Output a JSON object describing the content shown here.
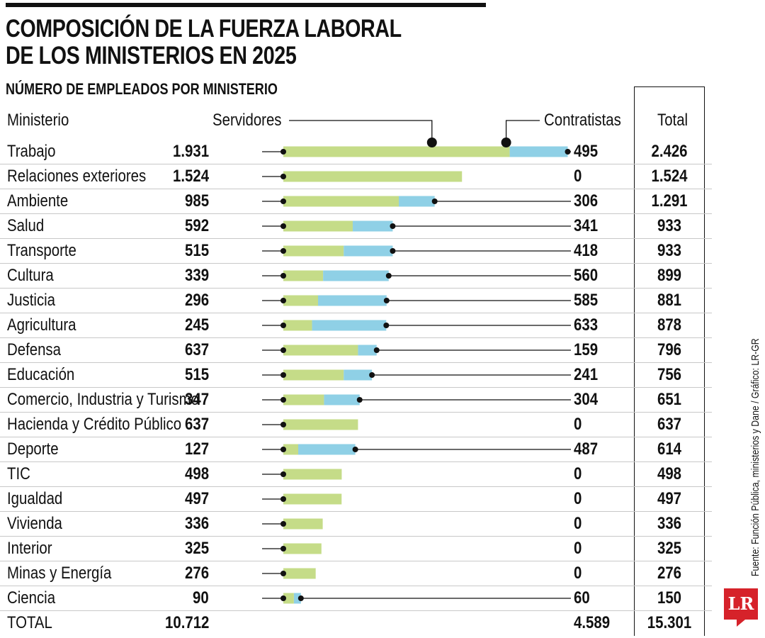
{
  "title": "COMPOSICIÓN DE LA FUERZA LABORAL DE LOS MINISTERIOS EN 2025",
  "title_line1": "COMPOSICIÓN DE LA FUERZA LABORAL",
  "title_line2": "DE LOS MINISTERIOS EN 2025",
  "subtitle": "NÚMERO DE EMPLEADOS POR MINISTERIO",
  "source": "Fuente: Función Pública, ministerios y Dane / Gráfico: LR-GR",
  "logo": "LR",
  "colors": {
    "servidores": "#c5dc88",
    "contratistas": "#8fd0e6",
    "line": "#111111"
  },
  "chart_data": {
    "type": "bar",
    "orientation": "horizontal",
    "stacked": true,
    "columns": {
      "name": "Ministerio",
      "servidores": "Servidores",
      "contratistas": "Contratistas",
      "total": "Total"
    },
    "rows": [
      {
        "name": "Trabajo",
        "servidores": 1931,
        "contratistas": 495,
        "total": 2426,
        "s_label": "1.931",
        "c_label": "495",
        "t_label": "2.426"
      },
      {
        "name": "Relaciones exteriores",
        "servidores": 1524,
        "contratistas": 0,
        "total": 1524,
        "s_label": "1.524",
        "c_label": "0",
        "t_label": "1.524"
      },
      {
        "name": "Ambiente",
        "servidores": 985,
        "contratistas": 306,
        "total": 1291,
        "s_label": "985",
        "c_label": "306",
        "t_label": "1.291"
      },
      {
        "name": "Salud",
        "servidores": 592,
        "contratistas": 341,
        "total": 933,
        "s_label": "592",
        "c_label": "341",
        "t_label": "933"
      },
      {
        "name": "Transporte",
        "servidores": 515,
        "contratistas": 418,
        "total": 933,
        "s_label": "515",
        "c_label": "418",
        "t_label": "933"
      },
      {
        "name": "Cultura",
        "servidores": 339,
        "contratistas": 560,
        "total": 899,
        "s_label": "339",
        "c_label": "560",
        "t_label": "899"
      },
      {
        "name": "Justicia",
        "servidores": 296,
        "contratistas": 585,
        "total": 881,
        "s_label": "296",
        "c_label": "585",
        "t_label": "881"
      },
      {
        "name": "Agricultura",
        "servidores": 245,
        "contratistas": 633,
        "total": 878,
        "s_label": "245",
        "c_label": "633",
        "t_label": "878"
      },
      {
        "name": "Defensa",
        "servidores": 637,
        "contratistas": 159,
        "total": 796,
        "s_label": "637",
        "c_label": "159",
        "t_label": "796"
      },
      {
        "name": "Educación",
        "servidores": 515,
        "contratistas": 241,
        "total": 756,
        "s_label": "515",
        "c_label": "241",
        "t_label": "756"
      },
      {
        "name": "Comercio, Industria y Turismo",
        "servidores": 347,
        "contratistas": 304,
        "total": 651,
        "s_label": "347",
        "c_label": "304",
        "t_label": "651"
      },
      {
        "name": "Hacienda y Crédito Público",
        "servidores": 637,
        "contratistas": 0,
        "total": 637,
        "s_label": "637",
        "c_label": "0",
        "t_label": "637"
      },
      {
        "name": "Deporte",
        "servidores": 127,
        "contratistas": 487,
        "total": 614,
        "s_label": "127",
        "c_label": "487",
        "t_label": "614"
      },
      {
        "name": "TIC",
        "servidores": 498,
        "contratistas": 0,
        "total": 498,
        "s_label": "498",
        "c_label": "0",
        "t_label": "498"
      },
      {
        "name": "Igualdad",
        "servidores": 497,
        "contratistas": 0,
        "total": 497,
        "s_label": "497",
        "c_label": "0",
        "t_label": "497"
      },
      {
        "name": "Vivienda",
        "servidores": 336,
        "contratistas": 0,
        "total": 336,
        "s_label": "336",
        "c_label": "0",
        "t_label": "336"
      },
      {
        "name": "Interior",
        "servidores": 325,
        "contratistas": 0,
        "total": 325,
        "s_label": "325",
        "c_label": "0",
        "t_label": "325"
      },
      {
        "name": "Minas y Energía",
        "servidores": 276,
        "contratistas": 0,
        "total": 276,
        "s_label": "276",
        "c_label": "0",
        "t_label": "276"
      },
      {
        "name": "Ciencia",
        "servidores": 90,
        "contratistas": 60,
        "total": 150,
        "s_label": "90",
        "c_label": "60",
        "t_label": "150"
      }
    ],
    "totals": {
      "name": "TOTAL",
      "servidores": "10.712",
      "contratistas": "4.589",
      "total": "15.301"
    }
  }
}
